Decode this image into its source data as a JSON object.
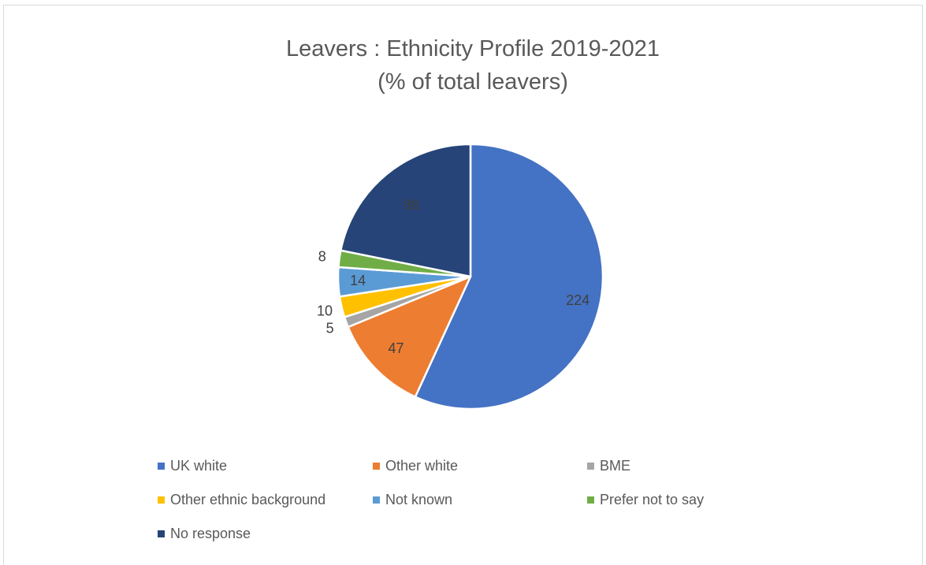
{
  "chart_data": {
    "type": "pie",
    "title_line1": "Leavers : Ethnicity Profile 2019-2021",
    "title_line2": "(% of total leavers)",
    "categories": [
      "UK white",
      "Other white",
      "BME",
      "Other ethnic background",
      "Not known",
      "Prefer not to say",
      "No response"
    ],
    "values": [
      224,
      47,
      5,
      10,
      14,
      8,
      86
    ],
    "data_labels": [
      "224",
      "47",
      "5",
      "10",
      "14",
      "8",
      "86"
    ],
    "colors": [
      "#4472C4",
      "#ED7D31",
      "#A5A5A5",
      "#FFC000",
      "#5B9BD5",
      "#70AD47",
      "#264478"
    ],
    "legend_position": "bottom",
    "start_angle_deg": 0,
    "direction": "clockwise"
  }
}
